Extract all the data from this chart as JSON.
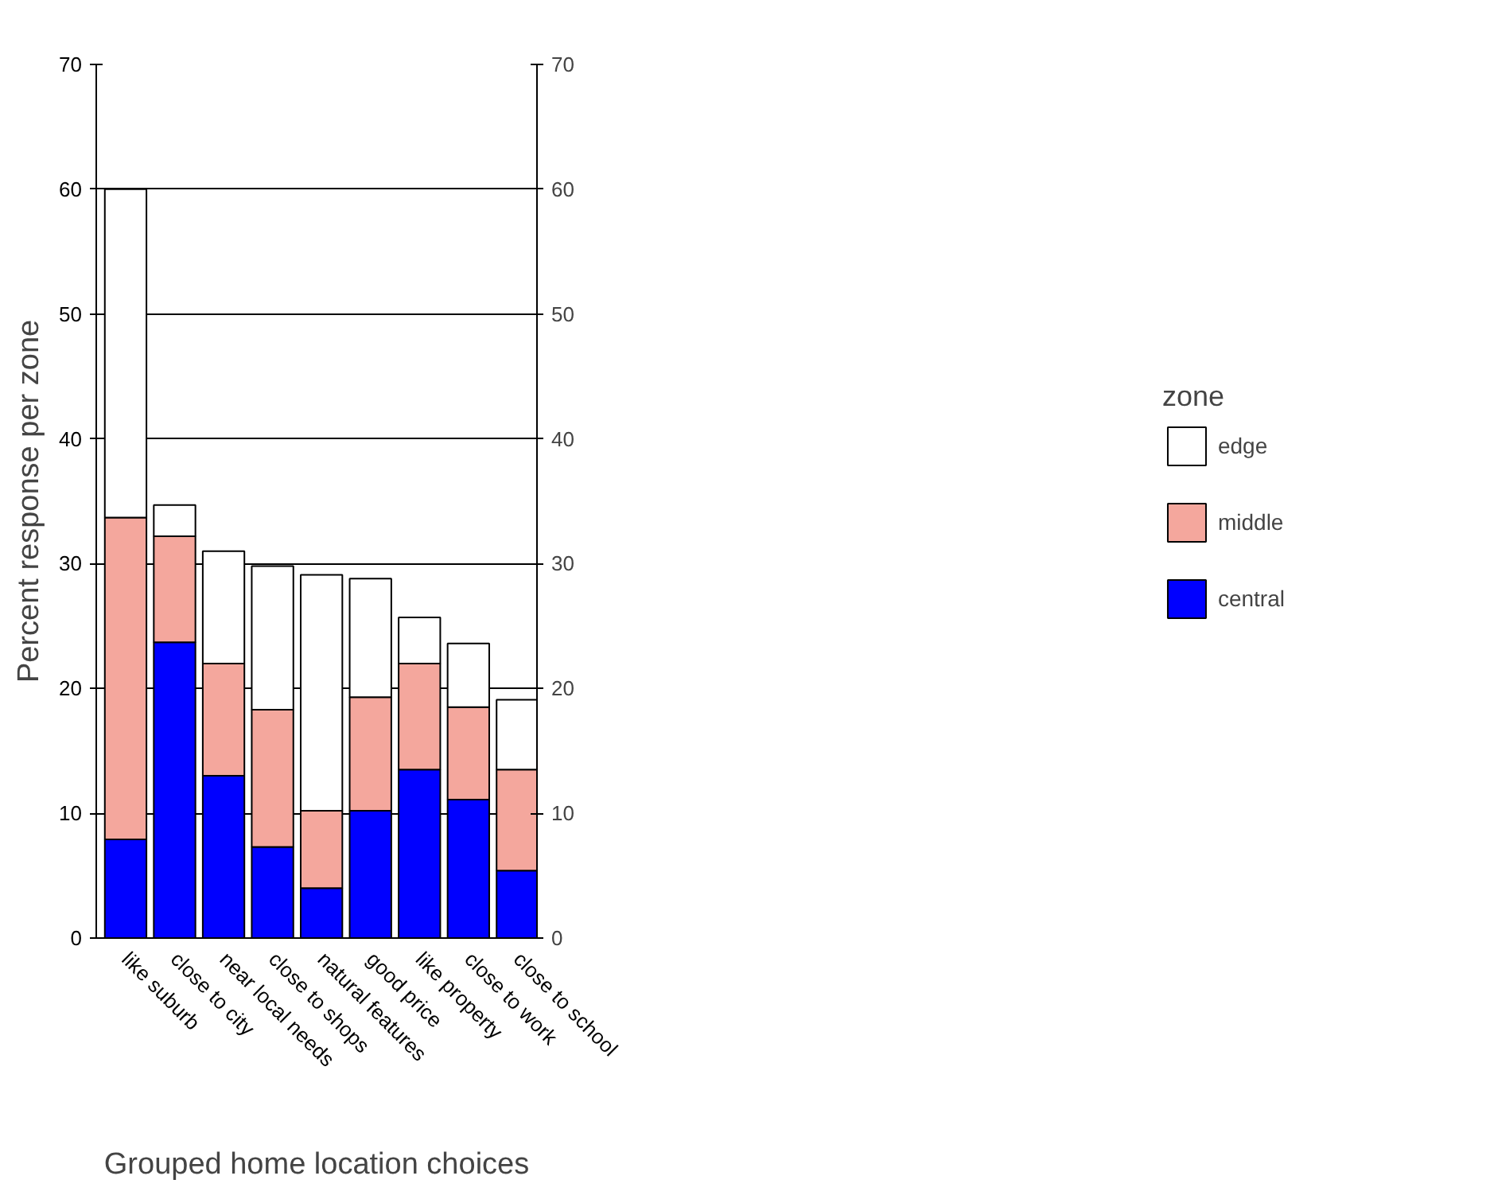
{
  "chart_data": {
    "type": "bar",
    "stacked": true,
    "xlabel": "Grouped home location choices",
    "ylabel": "Percent response per zone",
    "legend_title": "zone",
    "categories": [
      "like suburb",
      "close to city",
      "near local needs",
      "close to shops",
      "natural features",
      "good price",
      "like property",
      "close to work",
      "close to school"
    ],
    "series": [
      {
        "name": "central",
        "color": "#0000ff",
        "values": [
          7.9,
          23.7,
          13.0,
          7.3,
          4.0,
          10.2,
          13.5,
          11.1,
          5.4
        ]
      },
      {
        "name": "middle",
        "color": "#f4a79d",
        "values": [
          25.8,
          8.5,
          9.0,
          11.0,
          6.2,
          9.1,
          8.5,
          7.4,
          8.1
        ]
      },
      {
        "name": "edge",
        "color": "#ffffff",
        "values": [
          26.3,
          2.5,
          9.0,
          11.5,
          18.9,
          9.5,
          3.7,
          5.1,
          5.6
        ]
      }
    ],
    "ylim": [
      0,
      70
    ],
    "yticks": [
      0,
      10,
      20,
      30,
      40,
      50,
      60,
      70
    ],
    "y2lim": [
      0,
      70
    ],
    "y2ticks": [
      0,
      10,
      20,
      30,
      40,
      50,
      60,
      70
    ],
    "grid": "y",
    "legend": "right"
  }
}
